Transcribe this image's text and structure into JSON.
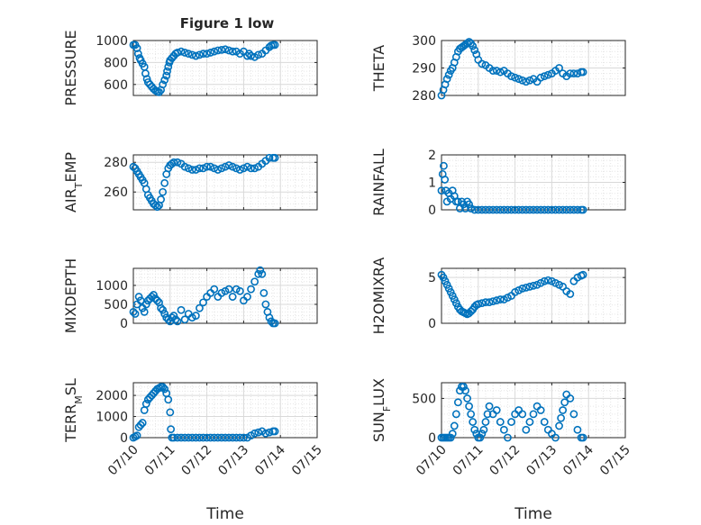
{
  "figure_title": "Figure 1 low",
  "marker_color": "#0072BD",
  "chart_data": [
    {
      "type": "scatter",
      "ylabel": "PRESSURE",
      "ylim": [
        500,
        1000
      ],
      "yticks": [
        600,
        800,
        1000
      ],
      "xlim": [
        0,
        5
      ],
      "xticks": [
        "07/10",
        "07/11",
        "07/12",
        "07/13",
        "07/14",
        "07/15"
      ],
      "x": [
        0,
        0.05,
        0.1,
        0.13,
        0.17,
        0.2,
        0.25,
        0.3,
        0.33,
        0.37,
        0.4,
        0.45,
        0.5,
        0.55,
        0.6,
        0.65,
        0.7,
        0.75,
        0.8,
        0.85,
        0.9,
        0.92,
        0.95,
        0.98,
        1.0,
        1.05,
        1.1,
        1.15,
        1.2,
        1.3,
        1.4,
        1.5,
        1.6,
        1.7,
        1.8,
        1.9,
        2.0,
        2.1,
        2.2,
        2.3,
        2.4,
        2.5,
        2.6,
        2.7,
        2.8,
        2.9,
        3.0,
        3.1,
        3.15,
        3.2,
        3.3,
        3.4,
        3.5,
        3.6,
        3.7,
        3.75,
        3.8,
        3.85
      ],
      "y": [
        960,
        960,
        930,
        880,
        840,
        820,
        790,
        760,
        700,
        650,
        620,
        600,
        580,
        560,
        545,
        535,
        530,
        550,
        600,
        640,
        680,
        720,
        760,
        800,
        820,
        840,
        860,
        880,
        890,
        900,
        890,
        880,
        870,
        860,
        870,
        880,
        880,
        890,
        900,
        910,
        915,
        920,
        910,
        900,
        900,
        880,
        900,
        860,
        880,
        860,
        850,
        870,
        880,
        910,
        940,
        955,
        960,
        960
      ]
    },
    {
      "type": "scatter",
      "ylabel": "THETA",
      "ylim": [
        280,
        300
      ],
      "yticks": [
        280,
        290,
        300
      ],
      "xlim": [
        0,
        5
      ],
      "xticks": [
        "07/10",
        "07/11",
        "07/12",
        "07/13",
        "07/14",
        "07/15"
      ],
      "x": [
        0,
        0.05,
        0.1,
        0.15,
        0.2,
        0.25,
        0.3,
        0.35,
        0.4,
        0.45,
        0.5,
        0.55,
        0.6,
        0.65,
        0.7,
        0.75,
        0.8,
        0.85,
        0.9,
        0.95,
        1.0,
        1.1,
        1.2,
        1.3,
        1.4,
        1.5,
        1.6,
        1.7,
        1.8,
        1.9,
        2.0,
        2.1,
        2.2,
        2.3,
        2.4,
        2.5,
        2.6,
        2.7,
        2.8,
        2.9,
        3.0,
        3.1,
        3.2,
        3.3,
        3.4,
        3.5,
        3.6,
        3.7,
        3.8,
        3.85
      ],
      "y": [
        280,
        282,
        284,
        286,
        287.5,
        289,
        290,
        292,
        294,
        296,
        297,
        297.5,
        298,
        298.5,
        299,
        299.5,
        299,
        298,
        296.5,
        295,
        293,
        291.5,
        291,
        290,
        289,
        289,
        288.5,
        289,
        288,
        287,
        286.5,
        286,
        285.5,
        285,
        285.5,
        286,
        285,
        286.5,
        287,
        287.5,
        288,
        289,
        290,
        288,
        287,
        288,
        288,
        288,
        288.5,
        288.5
      ]
    },
    {
      "type": "scatter",
      "ylabel": "AIR_TEMP",
      "ylim": [
        248,
        285
      ],
      "yticks": [
        260,
        280
      ],
      "xlim": [
        0,
        5
      ],
      "xticks": [
        "07/10",
        "07/11",
        "07/12",
        "07/13",
        "07/14",
        "07/15"
      ],
      "x": [
        0,
        0.05,
        0.1,
        0.15,
        0.2,
        0.25,
        0.3,
        0.35,
        0.4,
        0.45,
        0.5,
        0.55,
        0.6,
        0.65,
        0.7,
        0.75,
        0.8,
        0.85,
        0.9,
        0.95,
        1.0,
        1.05,
        1.1,
        1.2,
        1.3,
        1.4,
        1.5,
        1.6,
        1.7,
        1.8,
        1.9,
        2.0,
        2.1,
        2.2,
        2.3,
        2.4,
        2.5,
        2.6,
        2.7,
        2.8,
        2.9,
        3.0,
        3.1,
        3.2,
        3.3,
        3.4,
        3.5,
        3.6,
        3.7,
        3.8,
        3.85
      ],
      "y": [
        277,
        276,
        274,
        272,
        270,
        268,
        266,
        262,
        258,
        256,
        254,
        252,
        251,
        250,
        251,
        255,
        260,
        266,
        272,
        276,
        278,
        279,
        280,
        280,
        279,
        277,
        276,
        275,
        275,
        276,
        276,
        277,
        277,
        276,
        275,
        276,
        277,
        278,
        277,
        276,
        275,
        276,
        277,
        276,
        276,
        277,
        279,
        281,
        283,
        283,
        283
      ]
    },
    {
      "type": "scatter",
      "ylabel": "RAINFALL",
      "ylim": [
        0,
        2
      ],
      "yticks": [
        0,
        1,
        2
      ],
      "xlim": [
        0,
        5
      ],
      "xticks": [
        "07/10",
        "07/11",
        "07/12",
        "07/13",
        "07/14",
        "07/15"
      ],
      "x": [
        0,
        0.03,
        0.06,
        0.09,
        0.12,
        0.15,
        0.2,
        0.25,
        0.3,
        0.35,
        0.4,
        0.45,
        0.5,
        0.55,
        0.6,
        0.65,
        0.7,
        0.75,
        0.8,
        0.9,
        1.0,
        1.1,
        1.2,
        1.3,
        1.4,
        1.5,
        1.6,
        1.7,
        1.8,
        1.9,
        2.0,
        2.1,
        2.2,
        2.3,
        2.4,
        2.5,
        2.6,
        2.7,
        2.8,
        2.9,
        3.0,
        3.1,
        3.2,
        3.3,
        3.4,
        3.5,
        3.6,
        3.7,
        3.8,
        3.85
      ],
      "y": [
        0.7,
        1.3,
        1.6,
        1.1,
        0.7,
        0.3,
        0.6,
        0.4,
        0.7,
        0.5,
        0.3,
        0.3,
        0.05,
        0.3,
        0.2,
        0.05,
        0.3,
        0.2,
        0.05,
        0,
        0,
        0,
        0,
        0,
        0,
        0,
        0,
        0,
        0,
        0,
        0,
        0,
        0,
        0,
        0,
        0,
        0,
        0,
        0,
        0,
        0,
        0,
        0,
        0,
        0,
        0,
        0,
        0,
        0,
        0
      ]
    },
    {
      "type": "scatter",
      "ylabel": "MIXDEPTH",
      "ylim": [
        0,
        1450
      ],
      "yticks": [
        0,
        500,
        1000
      ],
      "xlim": [
        0,
        5
      ],
      "xticks": [
        "07/10",
        "07/11",
        "07/12",
        "07/13",
        "07/14",
        "07/15"
      ],
      "x": [
        0,
        0.05,
        0.1,
        0.15,
        0.2,
        0.25,
        0.3,
        0.35,
        0.4,
        0.45,
        0.5,
        0.55,
        0.6,
        0.65,
        0.7,
        0.75,
        0.8,
        0.85,
        0.9,
        0.95,
        1.0,
        1.05,
        1.1,
        1.15,
        1.2,
        1.3,
        1.4,
        1.5,
        1.6,
        1.7,
        1.8,
        1.9,
        2.0,
        2.1,
        2.2,
        2.3,
        2.4,
        2.5,
        2.6,
        2.7,
        2.8,
        2.9,
        3.0,
        3.1,
        3.2,
        3.3,
        3.4,
        3.45,
        3.5,
        3.55,
        3.6,
        3.65,
        3.7,
        3.75,
        3.8,
        3.85
      ],
      "y": [
        300,
        250,
        500,
        700,
        600,
        400,
        300,
        500,
        600,
        650,
        700,
        750,
        650,
        600,
        550,
        400,
        350,
        250,
        150,
        100,
        50,
        150,
        200,
        100,
        50,
        350,
        100,
        250,
        150,
        200,
        400,
        550,
        700,
        800,
        900,
        700,
        800,
        850,
        900,
        700,
        900,
        850,
        600,
        700,
        900,
        1100,
        1300,
        1400,
        1300,
        800,
        500,
        300,
        150,
        50,
        0,
        0
      ]
    },
    {
      "type": "scatter",
      "ylabel": "H2OMIXRA",
      "ylim": [
        0,
        6
      ],
      "yticks": [
        0,
        5
      ],
      "xlim": [
        0,
        5
      ],
      "xticks": [
        "07/10",
        "07/11",
        "07/12",
        "07/13",
        "07/14",
        "07/15"
      ],
      "x": [
        0,
        0.05,
        0.1,
        0.15,
        0.2,
        0.25,
        0.3,
        0.35,
        0.4,
        0.45,
        0.5,
        0.55,
        0.6,
        0.65,
        0.7,
        0.75,
        0.8,
        0.85,
        0.9,
        0.95,
        1.0,
        1.1,
        1.2,
        1.3,
        1.4,
        1.5,
        1.6,
        1.7,
        1.8,
        1.9,
        2.0,
        2.1,
        2.2,
        2.3,
        2.4,
        2.5,
        2.6,
        2.7,
        2.8,
        2.9,
        3.0,
        3.1,
        3.2,
        3.3,
        3.4,
        3.5,
        3.6,
        3.7,
        3.8,
        3.85
      ],
      "y": [
        5.3,
        5.0,
        4.6,
        4.2,
        3.8,
        3.4,
        3.0,
        2.6,
        2.2,
        1.8,
        1.5,
        1.3,
        1.2,
        1.1,
        1.0,
        1.1,
        1.3,
        1.5,
        1.8,
        2.0,
        2.1,
        2.2,
        2.3,
        2.3,
        2.4,
        2.5,
        2.6,
        2.6,
        2.8,
        3.0,
        3.4,
        3.6,
        3.8,
        3.9,
        4.0,
        4.1,
        4.2,
        4.4,
        4.6,
        4.7,
        4.6,
        4.4,
        4.2,
        4.0,
        3.5,
        3.2,
        4.6,
        5.0,
        5.2,
        5.3
      ]
    },
    {
      "type": "scatter",
      "ylabel": "TERR_MSL",
      "ylim": [
        0,
        2600
      ],
      "yticks": [
        0,
        1000,
        2000
      ],
      "xlim": [
        0,
        5
      ],
      "xticks": [
        "07/10",
        "07/11",
        "07/12",
        "07/13",
        "07/14",
        "07/15"
      ],
      "x": [
        0,
        0.05,
        0.1,
        0.15,
        0.2,
        0.25,
        0.3,
        0.35,
        0.4,
        0.45,
        0.5,
        0.55,
        0.6,
        0.65,
        0.7,
        0.75,
        0.8,
        0.85,
        0.9,
        0.95,
        1.0,
        1.02,
        1.05,
        1.1,
        1.2,
        1.3,
        1.4,
        1.5,
        1.6,
        1.7,
        1.8,
        1.9,
        2.0,
        2.1,
        2.2,
        2.3,
        2.4,
        2.5,
        2.6,
        2.7,
        2.8,
        2.9,
        3.0,
        3.1,
        3.2,
        3.3,
        3.4,
        3.5,
        3.6,
        3.7,
        3.8,
        3.85
      ],
      "y": [
        0,
        50,
        100,
        500,
        600,
        700,
        1300,
        1600,
        1800,
        1900,
        2000,
        2100,
        2200,
        2300,
        2350,
        2400,
        2400,
        2300,
        2100,
        1800,
        1200,
        400,
        0,
        0,
        0,
        0,
        0,
        0,
        0,
        0,
        0,
        0,
        0,
        0,
        0,
        0,
        0,
        0,
        0,
        0,
        0,
        0,
        0,
        0,
        100,
        200,
        250,
        300,
        200,
        250,
        300,
        300
      ]
    },
    {
      "type": "scatter",
      "ylabel": "SUN_FLUX",
      "ylim": [
        0,
        700
      ],
      "yticks": [
        0,
        500
      ],
      "xlim": [
        0,
        5
      ],
      "xticks": [
        "07/10",
        "07/11",
        "07/12",
        "07/13",
        "07/14",
        "07/15"
      ],
      "x": [
        0,
        0.05,
        0.1,
        0.15,
        0.2,
        0.25,
        0.3,
        0.35,
        0.4,
        0.45,
        0.5,
        0.55,
        0.6,
        0.65,
        0.7,
        0.75,
        0.8,
        0.85,
        0.9,
        0.95,
        1.0,
        1.05,
        1.1,
        1.15,
        1.2,
        1.25,
        1.3,
        1.4,
        1.5,
        1.6,
        1.7,
        1.8,
        1.9,
        2.0,
        2.1,
        2.2,
        2.3,
        2.4,
        2.5,
        2.6,
        2.7,
        2.8,
        2.9,
        3.0,
        3.1,
        3.2,
        3.25,
        3.3,
        3.35,
        3.4,
        3.5,
        3.6,
        3.7,
        3.8,
        3.85
      ],
      "y": [
        0,
        0,
        0,
        0,
        0,
        0,
        50,
        150,
        300,
        450,
        600,
        650,
        650,
        600,
        500,
        400,
        300,
        200,
        100,
        50,
        0,
        0,
        50,
        100,
        200,
        300,
        400,
        300,
        350,
        200,
        100,
        0,
        200,
        300,
        350,
        300,
        100,
        200,
        300,
        400,
        350,
        200,
        100,
        50,
        0,
        150,
        250,
        350,
        450,
        550,
        500,
        300,
        100,
        0,
        0
      ]
    }
  ]
}
